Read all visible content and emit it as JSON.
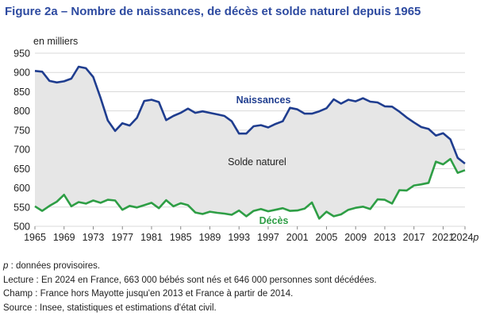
{
  "title": "Figure 2a – Nombre de naissances, de décès et solde naturel depuis 1965",
  "notes": {
    "p_symbol": "p",
    "p_text": " : données provisoires.",
    "lecture": "Lecture : En 2024 en France, 663 000 bébés sont nés et 646 000 personnes sont décédées.",
    "champ": "Champ : France hors Mayotte jusqu'en 2013 et France à partir de 2014.",
    "source": "Source : Insee, statistiques et estimations d'état civil."
  },
  "colors": {
    "births": "#1f3d8f",
    "deaths": "#2e9e45",
    "fill": "#e6e6e6",
    "axis_text": "#222222"
  },
  "chart_data": {
    "type": "line",
    "ylabel": "en milliers",
    "ylim": [
      500,
      950
    ],
    "yticks": [
      500,
      550,
      600,
      650,
      700,
      750,
      800,
      850,
      900,
      950
    ],
    "xlim": [
      1965,
      2024
    ],
    "xticks": [
      "1965",
      "1969",
      "1973",
      "1977",
      "1981",
      "1985",
      "1989",
      "1993",
      "1997",
      "2001",
      "2005",
      "2009",
      "2013",
      "2017",
      "2021",
      "2024p"
    ],
    "xtick_values": [
      1965,
      1969,
      1973,
      1977,
      1981,
      1985,
      1989,
      1993,
      1997,
      2001,
      2005,
      2009,
      2013,
      2017,
      2021,
      2024
    ],
    "area_label": "Solde naturel",
    "x": [
      1965,
      1966,
      1967,
      1968,
      1969,
      1970,
      1971,
      1972,
      1973,
      1974,
      1975,
      1976,
      1977,
      1978,
      1979,
      1980,
      1981,
      1982,
      1983,
      1984,
      1985,
      1986,
      1987,
      1988,
      1989,
      1990,
      1991,
      1992,
      1993,
      1994,
      1995,
      1996,
      1997,
      1998,
      1999,
      2000,
      2001,
      2002,
      2003,
      2004,
      2005,
      2006,
      2007,
      2008,
      2009,
      2010,
      2011,
      2012,
      2013,
      2014,
      2015,
      2016,
      2017,
      2018,
      2019,
      2020,
      2021,
      2022,
      2023,
      2024
    ],
    "series": [
      {
        "name": "Naissances",
        "values": [
          904,
          902,
          878,
          874,
          877,
          884,
          915,
          911,
          888,
          834,
          775,
          748,
          768,
          762,
          782,
          826,
          829,
          823,
          776,
          787,
          795,
          806,
          795,
          799,
          795,
          791,
          787,
          773,
          741,
          741,
          760,
          763,
          757,
          766,
          773,
          808,
          804,
          793,
          793,
          799,
          807,
          830,
          819,
          829,
          825,
          833,
          824,
          822,
          812,
          811,
          798,
          783,
          770,
          758,
          753,
          736,
          742,
          726,
          678,
          663
        ]
      },
      {
        "name": "Décès",
        "values": [
          552,
          540,
          553,
          564,
          582,
          552,
          563,
          559,
          567,
          561,
          569,
          567,
          543,
          553,
          549,
          555,
          561,
          547,
          568,
          552,
          560,
          555,
          536,
          532,
          538,
          535,
          533,
          530,
          541,
          526,
          540,
          545,
          539,
          543,
          547,
          540,
          541,
          546,
          562,
          520,
          538,
          526,
          531,
          543,
          548,
          551,
          545,
          570,
          569,
          559,
          594,
          593,
          606,
          609,
          613,
          668,
          661,
          675,
          639,
          646
        ]
      }
    ]
  }
}
